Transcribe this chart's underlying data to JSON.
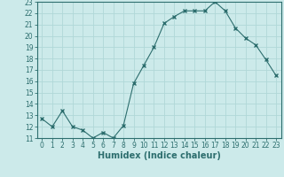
{
  "x": [
    0,
    1,
    2,
    3,
    4,
    5,
    6,
    7,
    8,
    9,
    10,
    11,
    12,
    13,
    14,
    15,
    16,
    17,
    18,
    19,
    20,
    21,
    22,
    23
  ],
  "y": [
    12.7,
    12.0,
    13.4,
    12.0,
    11.7,
    11.0,
    11.5,
    11.0,
    12.1,
    15.8,
    17.4,
    19.0,
    21.1,
    21.7,
    22.2,
    22.2,
    22.2,
    23.0,
    22.2,
    20.7,
    19.8,
    19.2,
    17.9,
    16.5
  ],
  "line_color": "#2d6e6e",
  "marker": "x",
  "marker_size": 3,
  "bg_color": "#cceaea",
  "grid_color": "#b0d8d8",
  "xlabel": "Humidex (Indice chaleur)",
  "ylim": [
    11,
    23
  ],
  "xlim": [
    -0.5,
    23.5
  ],
  "yticks": [
    11,
    12,
    13,
    14,
    15,
    16,
    17,
    18,
    19,
    20,
    21,
    22,
    23
  ],
  "xticks": [
    0,
    1,
    2,
    3,
    4,
    5,
    6,
    7,
    8,
    9,
    10,
    11,
    12,
    13,
    14,
    15,
    16,
    17,
    18,
    19,
    20,
    21,
    22,
    23
  ],
  "tick_fontsize": 5.5,
  "xlabel_fontsize": 7.0
}
